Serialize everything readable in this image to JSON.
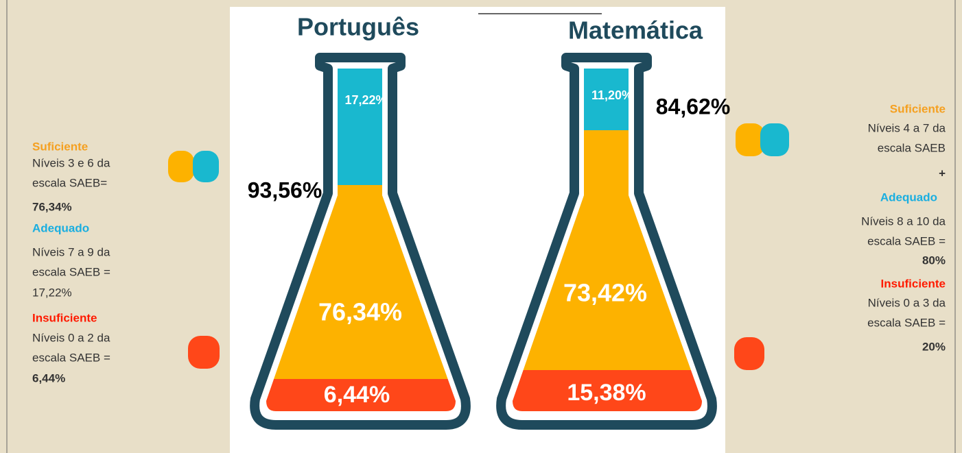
{
  "flasks": [
    {
      "title": "Português",
      "adequado": "17,22%",
      "suficiente": "76,34%",
      "insuficiente": "6,44%",
      "total": "93,56%"
    },
    {
      "title": "Matemática",
      "adequado": "11,20%",
      "suficiente": "73,42%",
      "insuficiente": "15,38%",
      "total": "84,62%"
    }
  ],
  "left_legend": {
    "suficiente": {
      "label": "Suficiente",
      "lines": [
        "Níveis 3 e 6 da",
        "escala SAEB="
      ],
      "value": "76,34%"
    },
    "adequado": {
      "label": "Adequado",
      "lines": [
        "Níveis 7 a 9 da",
        "escala SAEB ="
      ],
      "value": "17,22%"
    },
    "insuficiente": {
      "label": "Insuficiente",
      "lines": [
        "Níveis 0 a 2 da",
        "escala SAEB ="
      ],
      "value": "6,44%"
    }
  },
  "right_legend": {
    "suficiente": {
      "label": "Suficiente",
      "lines": [
        "Níveis 4 a 7 da",
        "escala SAEB"
      ],
      "plus": "+"
    },
    "adequado": {
      "label": "Adequado",
      "lines": [
        "Níveis 8 a 10 da",
        "escala SAEB ="
      ],
      "value": "80%"
    },
    "insuficiente": {
      "label": "Insuficiente",
      "lines": [
        "Níveis 0 a 3 da",
        "escala SAEB ="
      ],
      "value": "20%"
    }
  }
}
